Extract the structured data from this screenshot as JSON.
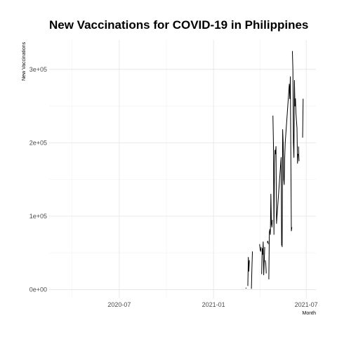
{
  "chart_data": {
    "type": "line",
    "title": "New Vaccinations for COVID-19 in Philippines",
    "xlabel": "Month",
    "ylabel": "New Vaccinations",
    "xlim": [
      "2020-02-15",
      "2021-07-20"
    ],
    "ylim": [
      -12000,
      340000
    ],
    "x_ticks": [
      "2020-07-01",
      "2021-01-01",
      "2021-07-01"
    ],
    "x_tick_labels": [
      "2020-07",
      "2021-01",
      "2021-07"
    ],
    "y_ticks": [
      0,
      100000,
      200000,
      300000
    ],
    "y_tick_labels": [
      "0e+00",
      "1e+05",
      "2e+05",
      "3e+05"
    ],
    "grid": true,
    "series": [
      {
        "name": "",
        "color": "#000000",
        "segments": [
          {
            "x": [
              "2021-03-05",
              "2021-03-06"
            ],
            "y": [
              1500,
              2500
            ]
          },
          {
            "x": [
              "2021-03-09",
              "2021-03-10",
              "2021-03-11",
              "2021-03-12"
            ],
            "y": [
              5000,
              44000,
              25000,
              40000
            ]
          },
          {
            "x": [
              "2021-03-16",
              "2021-03-17",
              "2021-03-18"
            ],
            "y": [
              1000,
              30000,
              52000
            ]
          },
          {
            "x": [
              "2021-04-01",
              "2021-04-02",
              "2021-04-03",
              "2021-04-04"
            ],
            "y": [
              62000,
              55000,
              52000,
              58000
            ]
          },
          {
            "x": [
              "2021-04-05",
              "2021-04-06",
              "2021-04-07",
              "2021-04-08",
              "2021-04-09",
              "2021-04-10",
              "2021-04-11"
            ],
            "y": [
              21000,
              56000,
              48000,
              65000,
              20000,
              38000,
              58000
            ]
          },
          {
            "x": [
              "2021-04-12",
              "2021-04-13",
              "2021-04-14"
            ],
            "y": [
              40000,
              36000,
              22000
            ]
          },
          {
            "x": [
              "2021-04-16",
              "2021-04-17",
              "2021-04-18"
            ],
            "y": [
              64000,
              66000,
              62000
            ]
          },
          {
            "x": [
              "2021-04-19",
              "2021-04-20",
              "2021-04-21",
              "2021-04-22",
              "2021-04-23",
              "2021-04-24",
              "2021-04-25",
              "2021-04-26"
            ],
            "y": [
              14000,
              78000,
              82000,
              75000,
              130000,
              90000,
              85000,
              95000
            ]
          },
          {
            "x": [
              "2021-04-27",
              "2021-04-28",
              "2021-04-29",
              "2021-04-30",
              "2021-05-01",
              "2021-05-02",
              "2021-05-03",
              "2021-05-04",
              "2021-05-05",
              "2021-05-06",
              "2021-05-07",
              "2021-05-08",
              "2021-05-09",
              "2021-05-10",
              "2021-05-11",
              "2021-05-12",
              "2021-05-13",
              "2021-05-14"
            ],
            "y": [
              237000,
              200000,
              75000,
              170000,
              190000,
              185000,
              195000,
              90000,
              100000,
              110000,
              120000,
              130000,
              140000,
              150000,
              160000,
              170000,
              180000,
              60000
            ]
          },
          {
            "x": [
              "2021-05-15",
              "2021-05-16",
              "2021-05-17",
              "2021-05-18",
              "2021-05-19",
              "2021-05-20",
              "2021-05-21",
              "2021-05-22",
              "2021-05-23",
              "2021-05-24",
              "2021-05-25",
              "2021-05-26",
              "2021-05-27",
              "2021-05-28",
              "2021-05-29",
              "2021-05-30",
              "2021-05-31",
              "2021-06-01",
              "2021-06-02",
              "2021-06-03"
            ],
            "y": [
              58000,
              218000,
              200000,
              150000,
              143000,
              180000,
              200000,
              210000,
              220000,
              230000,
              240000,
              250000,
              260000,
              270000,
              280000,
              260000,
              290000,
              180000,
              80000,
              85000
            ]
          },
          {
            "x": [
              "2021-06-04",
              "2021-06-05",
              "2021-06-06",
              "2021-06-07",
              "2021-06-08",
              "2021-06-09",
              "2021-06-10",
              "2021-06-11",
              "2021-06-12",
              "2021-06-13",
              "2021-06-14",
              "2021-06-15"
            ],
            "y": [
              325000,
              300000,
              200000,
              180000,
              285000,
              250000,
              260000,
              240000,
              230000,
              220000,
              172000,
              185000
            ]
          },
          {
            "x": [
              "2021-06-16",
              "2021-06-17"
            ],
            "y": [
              195000,
              175000
            ]
          },
          {
            "x": [
              "2021-06-24",
              "2021-06-25"
            ],
            "y": [
              207000,
              260000
            ]
          }
        ]
      }
    ]
  }
}
